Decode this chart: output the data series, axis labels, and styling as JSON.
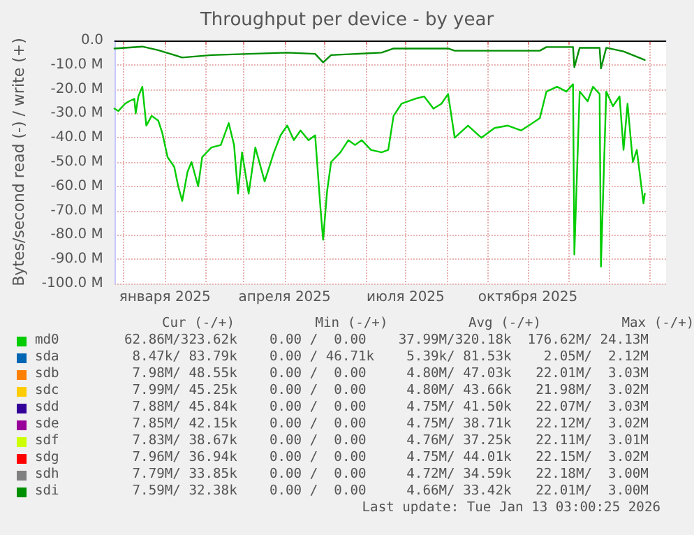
{
  "chart_data": {
    "type": "line",
    "title": "Throughput per device - by year",
    "ylabel": "Bytes/second read (-) / write (+)",
    "xlim": [
      "2024-11-24",
      "2026-01-13"
    ],
    "xticks": [
      {
        "value": "2024-12-01",
        "label": null
      },
      {
        "value": "2025-01-01",
        "label": "января 2025"
      },
      {
        "value": "2025-02-01",
        "label": null
      },
      {
        "value": "2025-03-01",
        "label": null
      },
      {
        "value": "2025-04-01",
        "label": "апреля 2025"
      },
      {
        "value": "2025-05-01",
        "label": null
      },
      {
        "value": "2025-06-01",
        "label": null
      },
      {
        "value": "2025-07-01",
        "label": "июля 2025"
      },
      {
        "value": "2025-08-01",
        "label": null
      },
      {
        "value": "2025-09-01",
        "label": null
      },
      {
        "value": "2025-10-01",
        "label": "октября 2025"
      },
      {
        "value": "2025-11-01",
        "label": null
      },
      {
        "value": "2025-12-01",
        "label": null
      },
      {
        "value": "2026-01-01",
        "label": null
      }
    ],
    "ylim": [
      -100,
      0
    ],
    "yticks": [
      {
        "value": -100,
        "label": "-100.0 M"
      },
      {
        "value": -90,
        "label": "-90.0 M"
      },
      {
        "value": -80,
        "label": "-80.0 M"
      },
      {
        "value": -70,
        "label": "-70.0 M"
      },
      {
        "value": -60,
        "label": "-60.0 M"
      },
      {
        "value": -50,
        "label": "-50.0 M"
      },
      {
        "value": -40,
        "label": "-40.0 M"
      },
      {
        "value": -30,
        "label": "-30.0 M"
      },
      {
        "value": -20,
        "label": "-20.0 M"
      },
      {
        "value": -10,
        "label": "-10.0 M"
      },
      {
        "value": 0,
        "label": "0.0"
      }
    ],
    "grid": true,
    "legend": "bottom",
    "marker": "none",
    "line_style": "solid",
    "ref_lines": [
      {
        "axis": "y",
        "value": 0,
        "color": "#000000"
      }
    ],
    "annotations": [
      "Cur (-/+)          Min (-/+)          Avg (-/+)          Max (-/+)",
      "62.86M/323.62k    0.00 /  0.00    37.99M/320.18k  176.62M/ 24.13M",
      " 8.47k/ 83.79k    0.00 / 46.71k    5.39k/ 81.53k    2.05M/  2.12M",
      " 7.98M/ 48.55k    0.00 /  0.00     4.80M/ 47.03k   22.01M/  3.03M",
      " 7.99M/ 45.25k    0.00 /  0.00     4.80M/ 43.66k   21.98M/  3.02M",
      " 7.88M/ 45.84k    0.00 /  0.00     4.75M/ 41.50k   22.07M/  3.03M",
      " 7.85M/ 42.15k    0.00 /  0.00     4.75M/ 38.71k   22.12M/  3.02M",
      " 7.83M/ 38.67k    0.00 /  0.00     4.76M/ 37.25k   22.11M/  3.01M",
      " 7.96M/ 36.94k    0.00 /  0.00     4.75M/ 44.01k   22.15M/  3.02M",
      " 7.79M/ 33.85k    0.00 /  0.00     4.72M/ 34.59k   22.18M/  3.00M",
      " 7.59M/ 32.38k    0.00 /  0.00     4.66M/ 33.42k   22.01M/  3.00M",
      "Last update: Tue Jan 13 03:00:25 2026"
    ],
    "series": [
      {
        "name": "md0",
        "color": "#00cc00",
        "x": [
          "2024-11-24",
          "2024-11-27",
          "2024-12-02",
          "2024-12-05",
          "2024-12-09",
          "2024-12-10",
          "2024-12-12",
          "2024-12-15",
          "2024-12-18",
          "2024-12-22",
          "2024-12-27",
          "2024-12-30",
          "2025-01-03",
          "2025-01-08",
          "2025-01-11",
          "2025-01-14",
          "2025-01-18",
          "2025-01-21",
          "2025-01-26",
          "2025-01-29",
          "2025-02-05",
          "2025-02-12",
          "2025-02-18",
          "2025-02-22",
          "2025-02-25",
          "2025-02-28",
          "2025-03-05",
          "2025-03-10",
          "2025-03-17",
          "2025-03-24",
          "2025-03-29",
          "2025-04-03",
          "2025-04-08",
          "2025-04-13",
          "2025-04-19",
          "2025-04-24",
          "2025-04-28",
          "2025-04-30",
          "2025-05-03",
          "2025-05-06",
          "2025-05-13",
          "2025-05-19",
          "2025-05-24",
          "2025-05-29",
          "2025-06-05",
          "2025-06-13",
          "2025-06-18",
          "2025-06-22",
          "2025-06-28",
          "2025-07-08",
          "2025-07-15",
          "2025-07-22",
          "2025-07-28",
          "2025-08-02",
          "2025-08-07",
          "2025-08-17",
          "2025-08-27",
          "2025-09-06",
          "2025-09-16",
          "2025-09-26",
          "2025-10-10",
          "2025-10-15",
          "2025-10-23",
          "2025-10-30",
          "2025-11-04",
          "2025-11-05",
          "2025-11-09",
          "2025-11-15",
          "2025-11-19",
          "2025-11-24",
          "2025-11-25",
          "2025-11-29",
          "2025-12-04",
          "2025-12-09",
          "2025-12-12",
          "2025-12-15",
          "2025-12-19",
          "2025-12-22",
          "2025-12-27",
          "2025-12-28"
        ],
        "values": [
          -28,
          -29,
          -26,
          -25,
          -24,
          -30,
          -23,
          -19,
          -35,
          -31,
          -33,
          -38,
          -48,
          -52,
          -60,
          -66,
          -54,
          -50,
          -60,
          -48,
          -44,
          -43,
          -34,
          -43,
          -63,
          -46,
          -63,
          -44,
          -58,
          -46,
          -39,
          -35,
          -41,
          -37,
          -41,
          -39,
          -69,
          -82,
          -62,
          -50,
          -46,
          -41,
          -43,
          -41,
          -45,
          -46,
          -45,
          -31,
          -26,
          -24,
          -23,
          -28,
          -26,
          -22,
          -40,
          -35,
          -40,
          -36,
          -35,
          -37,
          -32,
          -21,
          -19,
          -21,
          -18,
          -88,
          -21,
          -25,
          -19,
          -22,
          -93,
          -21,
          -27,
          -23,
          -45,
          -26,
          -50,
          -45,
          -67,
          -63
        ]
      },
      {
        "name": "sda",
        "color": "#0066b3"
      },
      {
        "name": "sdb",
        "color": "#ff8000"
      },
      {
        "name": "sdc",
        "color": "#ffcc00"
      },
      {
        "name": "sdd",
        "color": "#330099"
      },
      {
        "name": "sde",
        "color": "#990099"
      },
      {
        "name": "sdf",
        "color": "#ccff00"
      },
      {
        "name": "sdg",
        "color": "#ff0000"
      },
      {
        "name": "sdh",
        "color": "#808080"
      },
      {
        "name": "sdi",
        "color": "#008f00",
        "x": [
          "2024-11-24",
          "2024-12-15",
          "2024-12-27",
          "2025-01-14",
          "2025-02-05",
          "2025-03-05",
          "2025-04-03",
          "2025-04-24",
          "2025-04-30",
          "2025-05-06",
          "2025-06-13",
          "2025-06-22",
          "2025-08-02",
          "2025-08-07",
          "2025-10-10",
          "2025-10-15",
          "2025-11-04",
          "2025-11-05",
          "2025-11-09",
          "2025-11-24",
          "2025-11-25",
          "2025-11-29",
          "2025-12-12",
          "2025-12-28"
        ],
        "values": [
          -3.3,
          -2.5,
          -4,
          -7,
          -6,
          -5.5,
          -5,
          -5.5,
          -9,
          -6,
          -5,
          -3.3,
          -3.3,
          -4.2,
          -4.2,
          -2.7,
          -2.7,
          -11,
          -3,
          -3,
          -11.5,
          -3,
          -4.5,
          -8
        ]
      }
    ]
  }
}
